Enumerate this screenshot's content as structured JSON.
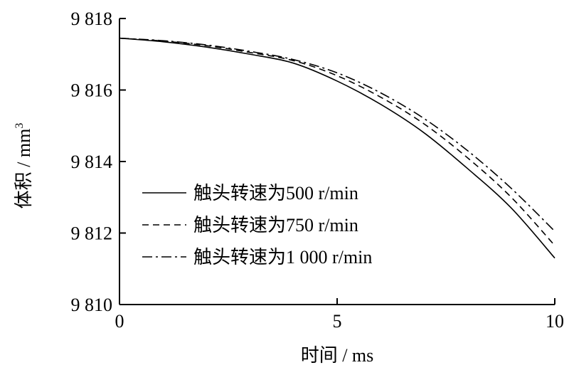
{
  "chart_data": {
    "type": "line",
    "xlabel": "时间 / ms",
    "ylabel": "体积 / mm",
    "ylabel_sup": "3",
    "xlim": [
      0,
      10
    ],
    "ylim": [
      9810,
      9818
    ],
    "x_ticks": [
      0,
      5,
      10
    ],
    "x_tick_labels": [
      "0",
      "5",
      "10"
    ],
    "y_ticks": [
      9810,
      9812,
      9814,
      9816,
      9818
    ],
    "y_tick_labels": [
      "9 810",
      "9 812",
      "9 814",
      "9 816",
      "9 818"
    ],
    "grid": false,
    "legend_position": "center-left",
    "x": [
      0,
      1,
      2,
      3,
      4,
      5,
      6,
      7,
      8,
      9,
      10
    ],
    "series": [
      {
        "name": "触头转速为500 r/min",
        "line_style": "solid",
        "values": [
          9817.45,
          9817.35,
          9817.2,
          9817.0,
          9816.75,
          9816.25,
          9815.6,
          9814.8,
          9813.8,
          9812.7,
          9811.3
        ]
      },
      {
        "name": "触头转速为750 r/min",
        "line_style": "dashed",
        "values": [
          9817.45,
          9817.37,
          9817.24,
          9817.05,
          9816.82,
          9816.4,
          9815.8,
          9815.05,
          9814.1,
          9813.0,
          9811.65
        ]
      },
      {
        "name": "触头转速为1 000 r/min",
        "line_style": "dashdot",
        "values": [
          9817.45,
          9817.38,
          9817.26,
          9817.08,
          9816.85,
          9816.48,
          9815.92,
          9815.2,
          9814.3,
          9813.25,
          9812.05
        ]
      }
    ]
  }
}
